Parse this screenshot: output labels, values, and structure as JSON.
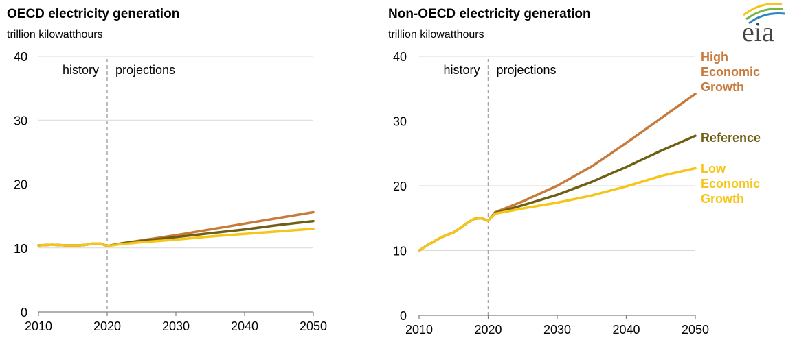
{
  "logo": {
    "text": "eia"
  },
  "colors": {
    "high": "#C87A3B",
    "reference": "#6E5F12",
    "low": "#F5C518",
    "grid": "#d9d9d9",
    "divider": "#a6a6a6"
  },
  "chart_data": [
    {
      "type": "line",
      "title": "OECD electricity generation",
      "subtitle": "trillion kilowatthours",
      "xlim": [
        2010,
        2050
      ],
      "ylim": [
        0,
        40
      ],
      "xticks": [
        2010,
        2020,
        2030,
        2040,
        2050
      ],
      "yticks": [
        0,
        10,
        20,
        30,
        40
      ],
      "grid": true,
      "divider_year": 2020,
      "annotations": {
        "history": "history",
        "projections": "projections"
      },
      "series": [
        {
          "key": "high",
          "color": "#C87A3B",
          "x": [
            2010,
            2012,
            2014,
            2016,
            2017,
            2018,
            2019,
            2020,
            2022,
            2025,
            2030,
            2035,
            2040,
            2045,
            2050
          ],
          "y": [
            10.4,
            10.5,
            10.4,
            10.4,
            10.5,
            10.7,
            10.7,
            10.3,
            10.7,
            11.2,
            12.0,
            12.9,
            13.8,
            14.7,
            15.6
          ]
        },
        {
          "key": "reference",
          "color": "#6E5F12",
          "x": [
            2010,
            2012,
            2014,
            2016,
            2017,
            2018,
            2019,
            2020,
            2022,
            2025,
            2030,
            2035,
            2040,
            2045,
            2050
          ],
          "y": [
            10.4,
            10.5,
            10.4,
            10.4,
            10.5,
            10.7,
            10.7,
            10.3,
            10.7,
            11.1,
            11.7,
            12.3,
            12.9,
            13.6,
            14.2
          ]
        },
        {
          "key": "low",
          "color": "#F5C518",
          "x": [
            2010,
            2012,
            2014,
            2016,
            2017,
            2018,
            2019,
            2020,
            2022,
            2025,
            2030,
            2035,
            2040,
            2045,
            2050
          ],
          "y": [
            10.4,
            10.5,
            10.4,
            10.4,
            10.5,
            10.7,
            10.7,
            10.3,
            10.6,
            10.9,
            11.3,
            11.8,
            12.2,
            12.6,
            13.0
          ]
        }
      ]
    },
    {
      "type": "line",
      "title": "Non-OECD electricity generation",
      "subtitle": "trillion kilowatthours",
      "xlim": [
        2010,
        2050
      ],
      "ylim": [
        0,
        40
      ],
      "xticks": [
        2010,
        2020,
        2030,
        2040,
        2050
      ],
      "yticks": [
        0,
        10,
        20,
        30,
        40
      ],
      "grid": true,
      "divider_year": 2020,
      "annotations": {
        "history": "history",
        "projections": "projections"
      },
      "series": [
        {
          "key": "high",
          "name": "High Economic Growth",
          "label_lines": [
            "High",
            "Economic",
            "Growth"
          ],
          "color": "#C87A3B",
          "x": [
            2010,
            2011,
            2012,
            2013,
            2014,
            2015,
            2016,
            2017,
            2018,
            2019,
            2020,
            2021,
            2025,
            2030,
            2035,
            2040,
            2045,
            2050
          ],
          "y": [
            10.0,
            10.7,
            11.3,
            11.9,
            12.4,
            12.8,
            13.5,
            14.3,
            14.9,
            15.0,
            14.6,
            15.9,
            17.6,
            20.0,
            23.0,
            26.6,
            30.4,
            34.2
          ]
        },
        {
          "key": "reference",
          "name": "Reference",
          "label_lines": [
            "Reference"
          ],
          "color": "#6E5F12",
          "x": [
            2010,
            2011,
            2012,
            2013,
            2014,
            2015,
            2016,
            2017,
            2018,
            2019,
            2020,
            2021,
            2025,
            2030,
            2035,
            2040,
            2045,
            2050
          ],
          "y": [
            10.0,
            10.7,
            11.3,
            11.9,
            12.4,
            12.8,
            13.5,
            14.3,
            14.9,
            15.0,
            14.6,
            15.8,
            17.0,
            18.6,
            20.6,
            22.9,
            25.4,
            27.7
          ]
        },
        {
          "key": "low",
          "name": "Low Economic Growth",
          "label_lines": [
            "Low",
            "Economic",
            "Growth"
          ],
          "color": "#F5C518",
          "x": [
            2010,
            2011,
            2012,
            2013,
            2014,
            2015,
            2016,
            2017,
            2018,
            2019,
            2020,
            2021,
            2025,
            2030,
            2035,
            2040,
            2045,
            2050
          ],
          "y": [
            10.0,
            10.7,
            11.3,
            11.9,
            12.4,
            12.8,
            13.5,
            14.3,
            14.9,
            15.0,
            14.6,
            15.7,
            16.5,
            17.4,
            18.5,
            19.9,
            21.5,
            22.7
          ]
        }
      ]
    }
  ]
}
